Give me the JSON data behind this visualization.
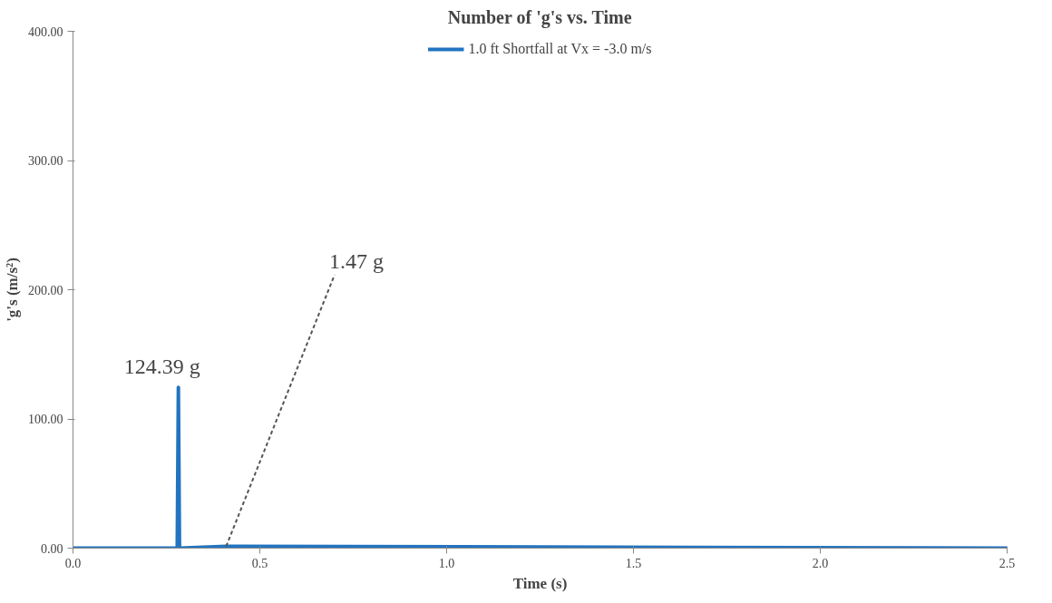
{
  "chart_data": {
    "type": "line",
    "title": "Number of 'g's vs. Time",
    "xlabel": "Time (s)",
    "ylabel": "'g's (m/s²)",
    "series": [
      {
        "name": "1.0 ft Shortfall at Vx = -3.0 m/s",
        "color": "#2274c0",
        "x": [
          0,
          0.279,
          0.282,
          0.285,
          0.41,
          2.5
        ],
        "values": [
          0,
          0,
          124.39,
          0,
          1.47,
          0
        ]
      }
    ],
    "xlim": [
      0,
      2.5
    ],
    "xticks": [
      {
        "value": 0,
        "label": "0.0"
      },
      {
        "value": 0.5,
        "label": "0.5"
      },
      {
        "value": 1,
        "label": "1.0"
      },
      {
        "value": 1.5,
        "label": "1.5"
      },
      {
        "value": 2,
        "label": "2.0"
      },
      {
        "value": 2.5,
        "label": "2.5"
      }
    ],
    "ylim": [
      0,
      400
    ],
    "yticks": [
      {
        "value": 0,
        "label": "0.00"
      },
      {
        "value": 100,
        "label": "100.00"
      },
      {
        "value": 200,
        "label": "200.00"
      },
      {
        "value": 300,
        "label": "300.00"
      },
      {
        "value": 400,
        "label": "400.00"
      }
    ],
    "annotations": [
      {
        "text": "124.39 g",
        "x": 0.282,
        "y": 124.39
      },
      {
        "text": "1.47 g",
        "x": 0.41,
        "y": 1.47
      }
    ],
    "legend": "top",
    "grid": false,
    "marker": "none",
    "line_style": "solid"
  }
}
